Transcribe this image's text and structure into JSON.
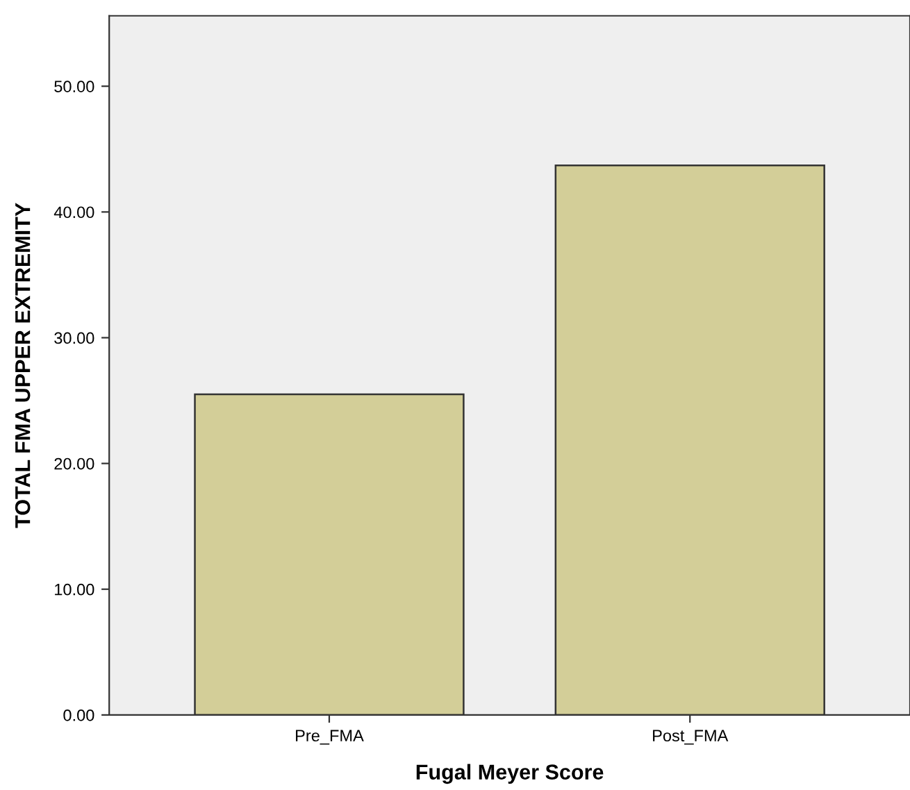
{
  "chart_data": {
    "type": "bar",
    "xlabel": "Fugal Meyer Score",
    "ylabel": "TOTAL FMA UPPER EXTREMITY",
    "categories": [
      "Pre_FMA",
      "Post_FMA"
    ],
    "values": [
      25.5,
      43.7
    ],
    "color": "#d3ce98",
    "ylim": [
      0,
      55.6
    ],
    "yticks": [
      {
        "value": 0,
        "label": "0.00"
      },
      {
        "value": 10,
        "label": "10.00"
      },
      {
        "value": 20,
        "label": "20.00"
      },
      {
        "value": 30,
        "label": "30.00"
      },
      {
        "value": 40,
        "label": "40.00"
      },
      {
        "value": 50,
        "label": "50.00"
      }
    ],
    "grid": false,
    "legend": false
  }
}
